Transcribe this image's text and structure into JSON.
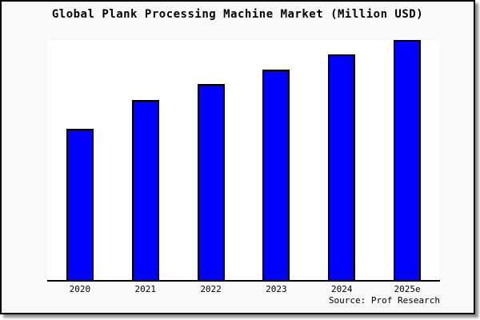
{
  "window": {
    "background": "#f8f8f8",
    "border_color": "#000000",
    "shadow_color": "#8f8f8f"
  },
  "chart_data": {
    "type": "bar",
    "title": "Global Plank Processing Machine Market (Million USD)",
    "categories": [
      "2020",
      "2021",
      "2022",
      "2023",
      "2024",
      "2025e"
    ],
    "values": [
      63,
      75,
      81.7,
      87.7,
      94,
      100
    ],
    "ylim": [
      0,
      100
    ],
    "xlabel": "",
    "ylabel": "",
    "grid": false,
    "legend": false,
    "y_axis_labels_visible": false,
    "bar_color": "#0000ff",
    "bar_border_color": "#000000",
    "plot_background": "#ffffff",
    "axis_color": "#000000"
  },
  "footer": {
    "source_label": "Source: Prof Research"
  }
}
